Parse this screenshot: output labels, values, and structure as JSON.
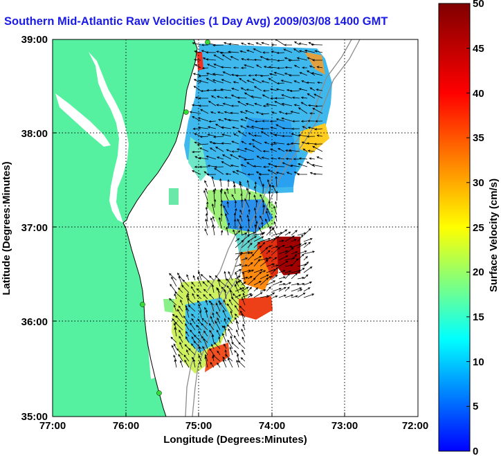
{
  "title": "Southern Mid-Atlantic Raw Velocities (1 Day Avg) 2009/03/08 1400 GMT",
  "axes": {
    "xlabel": "Longitude (Degrees:Minutes)",
    "ylabel": "Latitude (Degrees:Minutes)",
    "xticks": [
      "77:00",
      "76:00",
      "75:00",
      "74:00",
      "73:00",
      "72:00"
    ],
    "yticks": [
      "39:00",
      "38:00",
      "37:00",
      "36:00",
      "35:00"
    ]
  },
  "colorbar": {
    "label": "Surface Velocity (cm/s)",
    "ticks": [
      "50",
      "45",
      "40",
      "35",
      "30",
      "25",
      "20",
      "15",
      "10",
      "5",
      "0"
    ],
    "range": [
      0,
      50
    ],
    "stops": [
      "#0000ff",
      "#00ffff",
      "#ffff00",
      "#ff0000",
      "#800000"
    ]
  },
  "colors": {
    "land": "#55f0a0",
    "title": "#1a1ae6",
    "grid": "#000000",
    "vectors": "#000000",
    "bathymetry": "#8c8c8c",
    "radar_sites": "#33dd33"
  }
}
